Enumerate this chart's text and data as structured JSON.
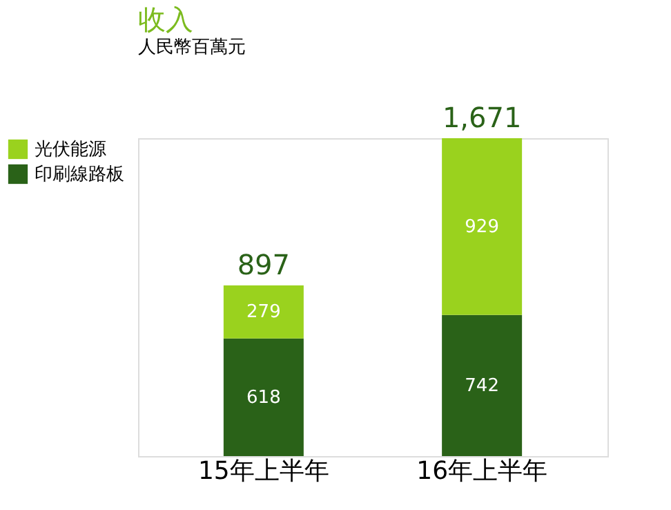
{
  "chart_data": {
    "type": "bar",
    "title": "收入",
    "subtitle": "人民幣百萬元",
    "stacked": true,
    "categories": [
      "15年上半年",
      "16年上半年"
    ],
    "series": [
      {
        "name": "印刷線路板",
        "color": "#2a6218",
        "values": [
          618,
          742
        ]
      },
      {
        "name": "光伏能源",
        "color": "#9ad21e",
        "values": [
          279,
          929
        ]
      }
    ],
    "data_labels": true,
    "totals": [
      "897",
      "1,671"
    ],
    "legend": "left"
  }
}
